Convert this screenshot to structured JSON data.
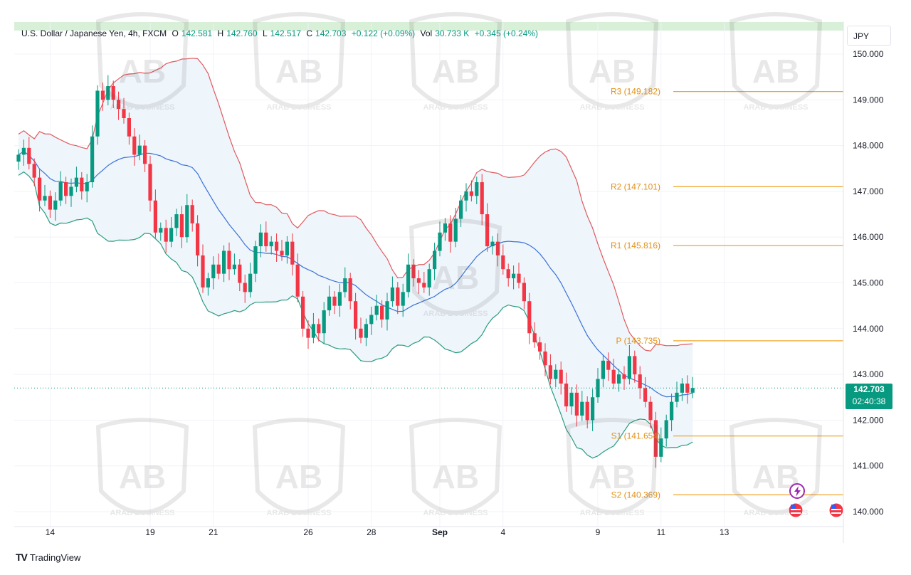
{
  "header": {
    "symbol": "U.S. Dollar / Japanese Yen, 4h, FXCM",
    "open_label": "O",
    "open": "142.581",
    "high_label": "H",
    "high": "142.760",
    "low_label": "L",
    "low": "142.517",
    "close_label": "C",
    "close": "142.703",
    "change": "+0.122 (+0.09%)",
    "vol_label": "Vol",
    "vol": "30.733 K",
    "vol_change": "+0.345 (+0.24%)"
  },
  "currency_button": "JPY",
  "last_price": {
    "price": "142.703",
    "countdown": "02:40:38",
    "value": 142.703
  },
  "brand": "TradingView",
  "watermark_text": "ARAB BUSINESS",
  "colors": {
    "up": "#089981",
    "down": "#f23645",
    "upper_band": "#e05a5f",
    "lower_band": "#2a9c7f",
    "mid_band": "#3a72d6",
    "band_fill": "#eef5fb",
    "level": "#f0a52c",
    "top_strip": "#d8efd8"
  },
  "chart_data": {
    "type": "candlestick",
    "ylim": [
      139.8,
      150.6
    ],
    "yticks": [
      140.0,
      141.0,
      142.0,
      143.0,
      144.0,
      145.0,
      146.0,
      147.0,
      148.0,
      149.0,
      150.0
    ],
    "ytick_labels": [
      "140.000",
      "141.000",
      "142.000",
      "143.000",
      "144.000",
      "145.000",
      "146.000",
      "147.000",
      "148.000",
      "149.000",
      "150.000"
    ],
    "x_labels": [
      {
        "label": "14",
        "index": 6
      },
      {
        "label": "19",
        "index": 25
      },
      {
        "label": "21",
        "index": 37
      },
      {
        "label": "26",
        "index": 55
      },
      {
        "label": "28",
        "index": 67
      },
      {
        "label": "Sep",
        "index": 80
      },
      {
        "label": "4",
        "index": 92
      },
      {
        "label": "9",
        "index": 110
      },
      {
        "label": "11",
        "index": 122
      },
      {
        "label": "13",
        "index": 134
      }
    ],
    "levels": [
      {
        "name": "R3",
        "value": 149.182,
        "label": "R3 (149.182)"
      },
      {
        "name": "R2",
        "value": 147.101,
        "label": "R2 (147.101)"
      },
      {
        "name": "R1",
        "value": 145.816,
        "label": "R1 (145.816)"
      },
      {
        "name": "P",
        "value": 143.735,
        "label": "P (143.735)"
      },
      {
        "name": "S1",
        "value": 141.654,
        "label": "S1 (141.654)"
      },
      {
        "name": "S2",
        "value": 140.369,
        "label": "S2 (140.369)"
      }
    ],
    "closes": [
      147.8,
      147.95,
      147.6,
      147.3,
      146.8,
      146.9,
      146.6,
      146.8,
      147.2,
      146.9,
      147.1,
      147.3,
      147.0,
      147.2,
      148.2,
      149.2,
      149.0,
      149.3,
      149.0,
      148.8,
      148.6,
      148.2,
      147.8,
      148.0,
      147.6,
      146.8,
      146.1,
      146.2,
      145.9,
      146.2,
      146.5,
      146.0,
      146.7,
      146.3,
      145.6,
      144.9,
      145.1,
      145.4,
      145.2,
      145.7,
      145.3,
      145.4,
      145.0,
      144.8,
      145.2,
      145.8,
      146.1,
      145.8,
      145.9,
      145.7,
      145.6,
      145.9,
      145.4,
      144.7,
      144.0,
      143.8,
      144.1,
      143.9,
      144.4,
      144.7,
      144.5,
      144.8,
      145.1,
      144.6,
      144.0,
      143.8,
      144.1,
      144.3,
      144.5,
      144.2,
      144.6,
      144.9,
      144.5,
      144.8,
      145.4,
      145.1,
      145.0,
      144.9,
      145.3,
      145.7,
      146.1,
      146.3,
      145.9,
      146.4,
      146.8,
      147.0,
      146.9,
      147.2,
      146.5,
      145.8,
      145.9,
      145.6,
      145.3,
      145.1,
      145.2,
      145.0,
      144.6,
      143.9,
      143.7,
      143.5,
      143.2,
      142.9,
      143.1,
      142.8,
      142.3,
      142.6,
      142.1,
      142.4,
      142.0,
      142.5,
      142.9,
      143.3,
      143.1,
      142.8,
      143.0,
      142.9,
      143.4,
      143.0,
      142.7,
      142.4,
      142.0,
      141.2,
      141.6,
      142.0,
      142.4,
      142.6,
      142.8,
      142.6,
      142.703
    ]
  }
}
